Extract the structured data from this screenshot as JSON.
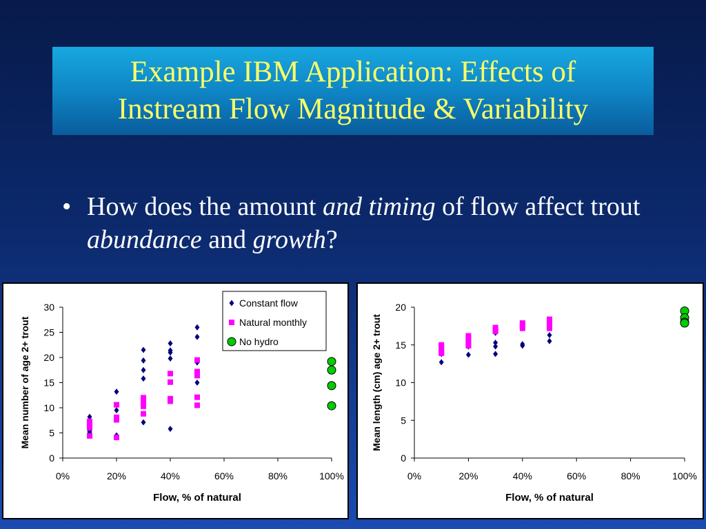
{
  "slide": {
    "title_line1": "Example IBM Application: Effects of",
    "title_line2": "Instream Flow Magnitude & Variability",
    "bullet_marker": "•",
    "bullet": {
      "p1": "How does the amount ",
      "p2": "and timing",
      "p3": " of flow affect trout ",
      "p4": "abundance",
      "p5": " and ",
      "p6": "growth",
      "p7": "?"
    }
  },
  "colors": {
    "constant": "#00007f",
    "natural": "#ff00ff",
    "nohydro": "#00cc00"
  },
  "chart_data": [
    {
      "type": "scatter",
      "title": "",
      "xlabel": "Flow, % of natural",
      "ylabel": "Mean number of age 2+ trout",
      "xlim": [
        0,
        100
      ],
      "ylim": [
        0,
        30
      ],
      "xticks": [
        "0%",
        "20%",
        "40%",
        "60%",
        "80%",
        "100%"
      ],
      "yticks": [
        "0",
        "5",
        "10",
        "15",
        "20",
        "25",
        "30"
      ],
      "grid": false,
      "legend_position": "top-right",
      "series": [
        {
          "name": "Constant flow",
          "marker": "diamond",
          "points": [
            [
              10,
              8.2
            ],
            [
              10,
              5.3
            ],
            [
              10,
              5.0
            ],
            [
              20,
              13.2
            ],
            [
              20,
              9.5
            ],
            [
              20,
              4.5
            ],
            [
              30,
              21.5
            ],
            [
              30,
              19.4
            ],
            [
              30,
              17.5
            ],
            [
              30,
              15.8
            ],
            [
              30,
              7.1
            ],
            [
              40,
              22.8
            ],
            [
              40,
              21.4
            ],
            [
              40,
              21.0
            ],
            [
              40,
              19.8
            ],
            [
              40,
              5.8
            ],
            [
              50,
              26.0
            ],
            [
              50,
              24.1
            ],
            [
              50,
              19.0
            ],
            [
              50,
              15.0
            ]
          ]
        },
        {
          "name": "Natural monthly",
          "marker": "square",
          "points": [
            [
              10,
              7.3
            ],
            [
              10,
              6.8
            ],
            [
              10,
              6.0
            ],
            [
              10,
              4.4
            ],
            [
              20,
              10.6
            ],
            [
              20,
              8.1
            ],
            [
              20,
              7.6
            ],
            [
              20,
              4.1
            ],
            [
              30,
              12.0
            ],
            [
              30,
              11.3
            ],
            [
              30,
              10.3
            ],
            [
              30,
              8.8
            ],
            [
              40,
              16.8
            ],
            [
              40,
              15.1
            ],
            [
              40,
              11.8
            ],
            [
              40,
              11.3
            ],
            [
              50,
              19.5
            ],
            [
              50,
              17.2
            ],
            [
              50,
              16.4
            ],
            [
              50,
              12.1
            ],
            [
              50,
              10.5
            ]
          ]
        },
        {
          "name": "No hydro",
          "marker": "circle",
          "points": [
            [
              100,
              19.2
            ],
            [
              100,
              17.5
            ],
            [
              100,
              14.4
            ],
            [
              100,
              10.4
            ]
          ]
        }
      ]
    },
    {
      "type": "scatter",
      "title": "",
      "xlabel": "Flow, % of natural",
      "ylabel": "Mean length (cm) age 2+ trout",
      "xlim": [
        0,
        100
      ],
      "ylim": [
        0,
        20
      ],
      "xticks": [
        "0%",
        "20%",
        "40%",
        "60%",
        "80%",
        "100%"
      ],
      "yticks": [
        "0",
        "5",
        "10",
        "15",
        "20"
      ],
      "grid": false,
      "legend_position": "none",
      "series": [
        {
          "name": "Constant flow",
          "marker": "diamond",
          "points": [
            [
              10,
              13.8
            ],
            [
              10,
              12.7
            ],
            [
              20,
              14.8
            ],
            [
              20,
              13.7
            ],
            [
              30,
              16.6
            ],
            [
              30,
              15.3
            ],
            [
              30,
              14.8
            ],
            [
              30,
              13.8
            ],
            [
              40,
              17.3
            ],
            [
              40,
              15.1
            ],
            [
              40,
              14.9
            ],
            [
              50,
              17.3
            ],
            [
              50,
              16.3
            ],
            [
              50,
              15.5
            ]
          ]
        },
        {
          "name": "Natural monthly",
          "marker": "square",
          "points": [
            [
              10,
              15.0
            ],
            [
              10,
              14.6
            ],
            [
              10,
              14.2
            ],
            [
              10,
              13.9
            ],
            [
              20,
              16.2
            ],
            [
              20,
              15.8
            ],
            [
              20,
              15.3
            ],
            [
              20,
              14.9
            ],
            [
              30,
              17.3
            ],
            [
              30,
              17.0
            ],
            [
              30,
              16.8
            ],
            [
              40,
              17.9
            ],
            [
              40,
              17.6
            ],
            [
              40,
              17.2
            ],
            [
              50,
              18.4
            ],
            [
              50,
              18.0
            ],
            [
              50,
              17.6
            ],
            [
              50,
              17.2
            ]
          ]
        },
        {
          "name": "No hydro",
          "marker": "circle",
          "points": [
            [
              100,
              19.5
            ],
            [
              100,
              18.6
            ],
            [
              100,
              18.0
            ],
            [
              100,
              17.9
            ]
          ]
        }
      ]
    }
  ]
}
